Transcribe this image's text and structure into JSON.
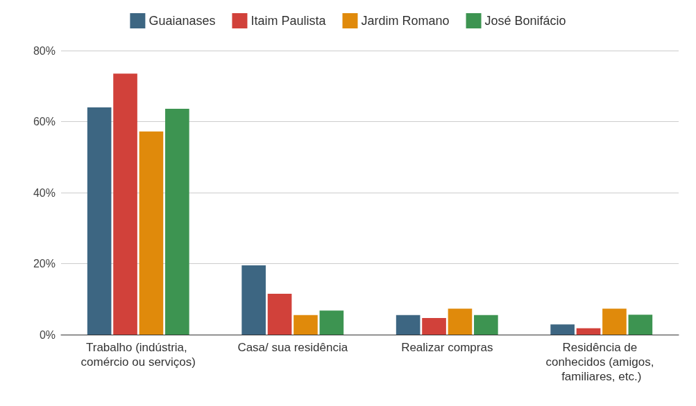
{
  "chart_data": {
    "type": "bar",
    "categories": [
      "Trabalho (indústria, comércio ou serviços)",
      "Casa/ sua residência",
      "Realizar compras",
      "Residência de conhecidos (amigos, familiares, etc.)"
    ],
    "series": [
      {
        "name": "Guaianases",
        "color": "#3d6682",
        "values": [
          64,
          19.5,
          5.5,
          2.9
        ]
      },
      {
        "name": "Itaim Paulista",
        "color": "#d1413a",
        "values": [
          73.5,
          11.5,
          4.7,
          1.8
        ]
      },
      {
        "name": "Jardim Romano",
        "color": "#e08a0b",
        "values": [
          57.2,
          5.5,
          7.3,
          7.3
        ]
      },
      {
        "name": "José Bonifácio",
        "color": "#3d9451",
        "values": [
          63.6,
          6.8,
          5.5,
          5.6
        ]
      }
    ],
    "ylim": [
      0,
      80
    ],
    "yticks": [
      {
        "value": 0,
        "label": "0%"
      },
      {
        "value": 20,
        "label": "20%"
      },
      {
        "value": 40,
        "label": "40%"
      },
      {
        "value": 60,
        "label": "60%"
      },
      {
        "value": 80,
        "label": "80%"
      }
    ],
    "grid": "y",
    "legend": "top"
  }
}
